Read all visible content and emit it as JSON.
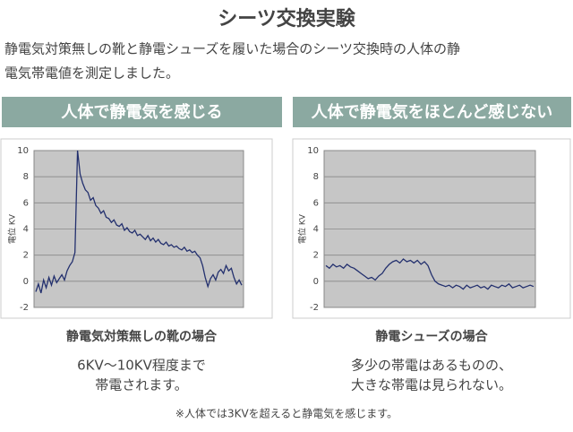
{
  "title": "シーツ交換実験",
  "description": [
    "静電気対策無しの靴と静電シューズを履いた場合のシーツ交換時の人体の静",
    "電気帯電値を測定しました。"
  ],
  "chart_data": [
    {
      "type": "line",
      "heading": "人体で静電気を感じる",
      "ylabel": "電位 KV",
      "ylim": [
        -2,
        10
      ],
      "yticks": [
        -2,
        0,
        2,
        4,
        6,
        8,
        10
      ],
      "grid": true,
      "color": "#23306e",
      "values": [
        -0.8,
        -0.2,
        -0.9,
        0.1,
        -0.5,
        0.3,
        -0.3,
        0.4,
        -0.1,
        0.2,
        0.5,
        0.1,
        0.8,
        1.2,
        1.5,
        2.2,
        10.0,
        8.2,
        7.5,
        7.0,
        6.8,
        6.2,
        6.4,
        5.8,
        5.6,
        5.2,
        5.4,
        4.9,
        4.8,
        4.5,
        4.7,
        4.3,
        4.2,
        4.4,
        3.9,
        4.1,
        3.8,
        3.7,
        3.9,
        3.5,
        3.6,
        3.4,
        3.2,
        3.5,
        3.1,
        3.3,
        3.0,
        3.2,
        2.9,
        2.8,
        3.0,
        2.7,
        2.8,
        2.6,
        2.7,
        2.5,
        2.4,
        2.6,
        2.3,
        2.4,
        2.2,
        2.3,
        2.0,
        1.8,
        1.2,
        0.3,
        -0.4,
        0.2,
        0.5,
        0.1,
        0.7,
        0.9,
        0.6,
        1.2,
        0.8,
        1.0,
        0.3,
        -0.2,
        0.1,
        -0.3
      ],
      "caption": "静電気対策無しの靴の場合",
      "note": [
        "6KV〜10KV程度まで",
        "帯電されます。"
      ]
    },
    {
      "type": "line",
      "heading": "人体で静電気をほとんど感じない",
      "ylabel": "電位 KV",
      "ylim": [
        -2,
        10
      ],
      "yticks": [
        -2,
        0,
        2,
        4,
        6,
        8,
        10
      ],
      "grid": true,
      "color": "#23306e",
      "values": [
        1.2,
        1.0,
        1.3,
        1.1,
        1.2,
        1.0,
        1.3,
        1.1,
        1.0,
        0.8,
        0.6,
        0.4,
        0.2,
        0.3,
        0.1,
        0.4,
        0.6,
        1.0,
        1.3,
        1.5,
        1.6,
        1.4,
        1.7,
        1.5,
        1.6,
        1.4,
        1.6,
        1.3,
        1.5,
        1.2,
        0.5,
        0.0,
        -0.2,
        -0.3,
        -0.4,
        -0.3,
        -0.5,
        -0.3,
        -0.4,
        -0.6,
        -0.3,
        -0.5,
        -0.4,
        -0.3,
        -0.5,
        -0.4,
        -0.6,
        -0.3,
        -0.4,
        -0.5,
        -0.3,
        -0.4,
        -0.2,
        -0.5,
        -0.4,
        -0.3,
        -0.5,
        -0.4,
        -0.3,
        -0.4
      ],
      "caption": "静電シューズの場合",
      "note": [
        "多少の帯電はあるものの、",
        "大きな帯電は見られない。"
      ]
    }
  ],
  "footnote": "※人体では3KVを超えると静電気を感じます。"
}
